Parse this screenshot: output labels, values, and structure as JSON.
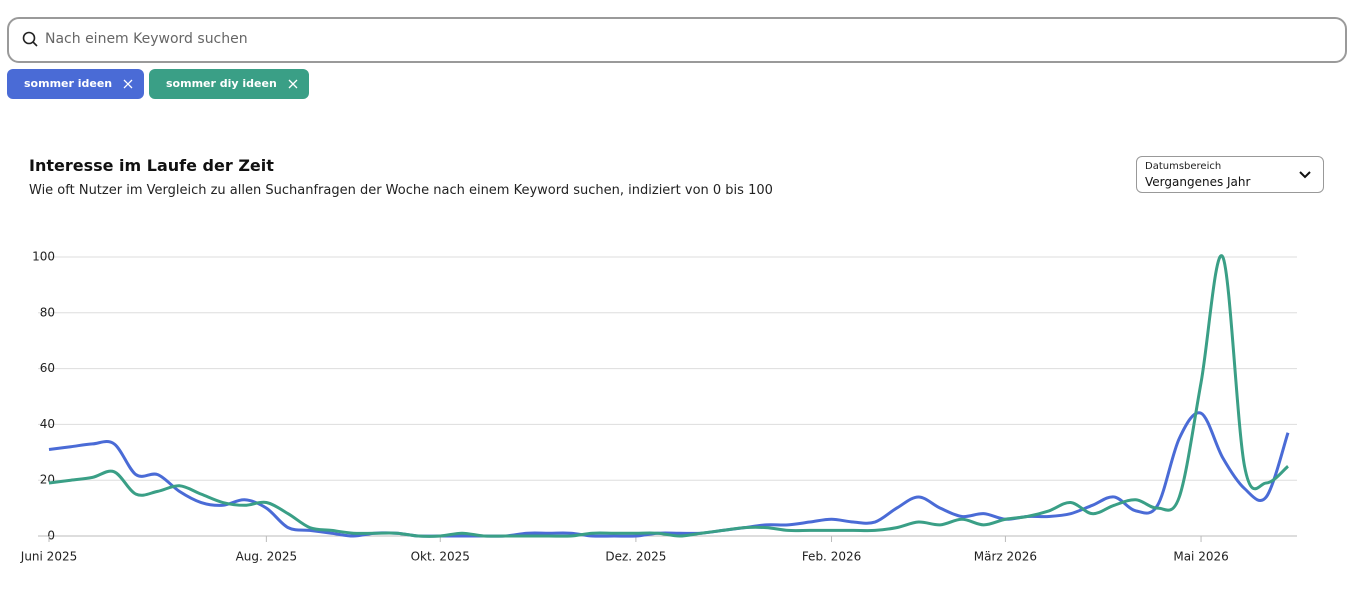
{
  "search": {
    "placeholder": "Nach einem Keyword suchen"
  },
  "date_range": {
    "label": "Datumsbereich",
    "value": "Vergangenes Jahr"
  },
  "chart_data": {
    "type": "line",
    "title": "Interesse im Laufe der Zeit",
    "subtitle": "Wie oft Nutzer im Vergleich zu allen Suchanfragen der Woche nach einem Keyword suchen, indiziert von 0 bis 100",
    "categories": [
      "Juni 2025",
      null,
      null,
      null,
      null,
      null,
      null,
      null,
      null,
      null,
      "Aug. 2025",
      null,
      null,
      null,
      null,
      null,
      null,
      null,
      "Okt. 2025",
      null,
      null,
      null,
      null,
      null,
      null,
      null,
      null,
      "Dez. 2025",
      null,
      null,
      null,
      null,
      null,
      null,
      null,
      null,
      "Feb. 2026",
      null,
      null,
      null,
      null,
      null,
      null,
      null,
      "März 2026",
      null,
      null,
      null,
      null,
      null,
      null,
      null,
      null,
      "Mai 2026",
      null,
      null,
      null,
      null
    ],
    "series": [
      {
        "name": "sommer ideen",
        "color": "#4a6bd6",
        "values": [
          31,
          32,
          33,
          33,
          22,
          22,
          16,
          12,
          11,
          13,
          10,
          3,
          2,
          1,
          0,
          1,
          1,
          0,
          0,
          0,
          0,
          0,
          1,
          1,
          1,
          0,
          0,
          0,
          1,
          1,
          1,
          2,
          3,
          4,
          4,
          5,
          6,
          5,
          5,
          10,
          14,
          10,
          7,
          8,
          6,
          7,
          7,
          8,
          11,
          14,
          9,
          11,
          35,
          44,
          28,
          17,
          14,
          37
        ]
      },
      {
        "name": "sommer diy ideen",
        "color": "#3a9f86",
        "values": [
          19,
          20,
          21,
          23,
          15,
          16,
          18,
          15,
          12,
          11,
          12,
          8,
          3,
          2,
          1,
          1,
          1,
          0,
          0,
          1,
          0,
          0,
          0,
          0,
          0,
          1,
          1,
          1,
          1,
          0,
          1,
          2,
          3,
          3,
          2,
          2,
          2,
          2,
          2,
          3,
          5,
          4,
          6,
          4,
          6,
          7,
          9,
          12,
          8,
          11,
          13,
          10,
          14,
          55,
          100,
          25,
          19,
          25
        ]
      }
    ],
    "ylim": [
      0,
      100
    ],
    "yticks": [
      0,
      20,
      40,
      60,
      80,
      100
    ],
    "grid": true
  }
}
